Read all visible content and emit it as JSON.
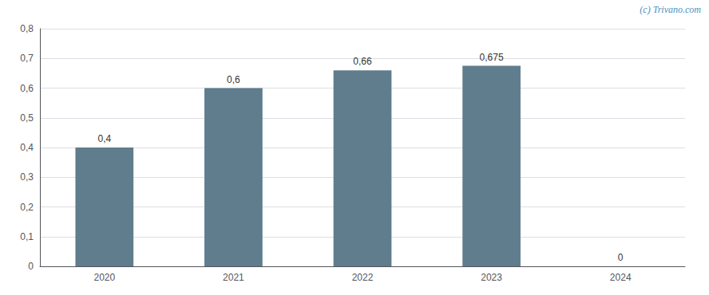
{
  "chart_data": {
    "type": "bar",
    "categories": [
      "2020",
      "2021",
      "2022",
      "2023",
      "2024"
    ],
    "values": [
      0.4,
      0.6,
      0.66,
      0.675,
      0
    ],
    "value_labels": [
      "0,4",
      "0,6",
      "0,66",
      "0,675",
      "0"
    ],
    "data_labels": true,
    "color": "#5f7d8c",
    "ylim": [
      0,
      0.8
    ],
    "yticks": [
      0,
      {
        "value": 0.1,
        "label": "0,1"
      },
      {
        "value": 0.2,
        "label": "0,2"
      },
      {
        "value": 0.3,
        "label": "0,3"
      },
      {
        "value": 0.4,
        "label": "0,4"
      },
      {
        "value": 0.5,
        "label": "0,5"
      },
      {
        "value": 0.6,
        "label": "0,6"
      },
      {
        "value": 0.7,
        "label": "0,7"
      },
      {
        "value": 0.8,
        "label": "0,8"
      }
    ],
    "grid": true,
    "annotations": [
      "(c) Trivano.com"
    ]
  }
}
